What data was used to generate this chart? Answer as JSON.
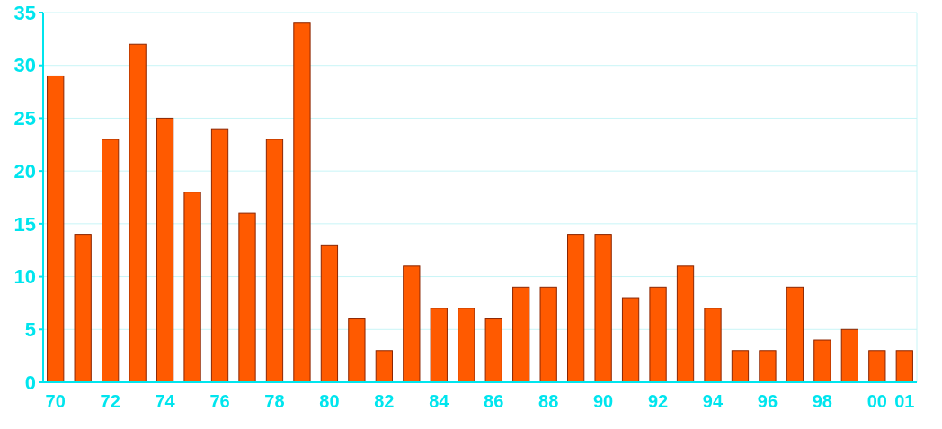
{
  "chart_data": {
    "type": "bar",
    "categories": [
      "70",
      null,
      "72",
      null,
      "74",
      null,
      "76",
      null,
      "78",
      null,
      "80",
      null,
      "82",
      null,
      "84",
      null,
      "86",
      null,
      "88",
      null,
      "90",
      null,
      "92",
      null,
      "94",
      null,
      "96",
      null,
      "98",
      null,
      "00",
      "01"
    ],
    "values": [
      29,
      14,
      23,
      32,
      25,
      18,
      24,
      16,
      23,
      34,
      13,
      6,
      3,
      11,
      7,
      7,
      6,
      9,
      9,
      14,
      14,
      8,
      9,
      11,
      7,
      3,
      3,
      9,
      4,
      5,
      3,
      3
    ],
    "color": "#ff5a00",
    "ylim": [
      0,
      35
    ],
    "yticks": [
      0,
      5,
      10,
      15,
      20,
      25,
      30,
      35
    ],
    "grid": "y"
  }
}
